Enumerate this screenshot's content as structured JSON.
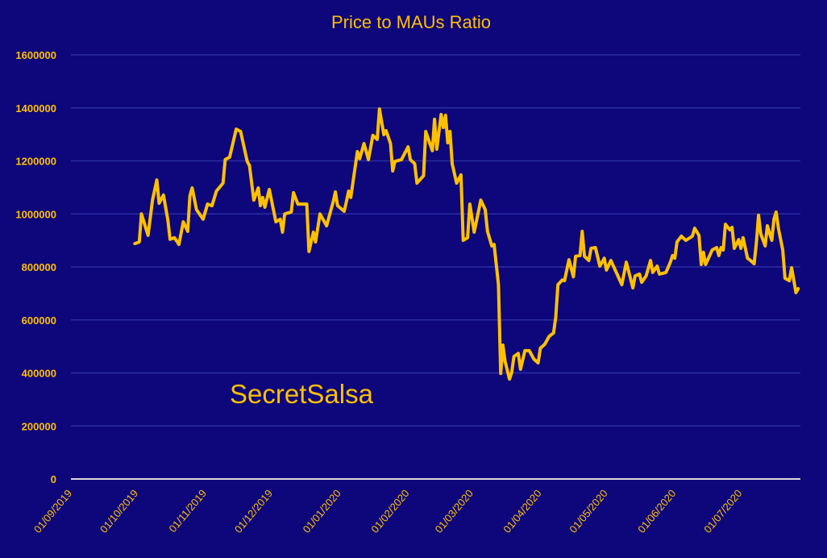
{
  "chart_data": {
    "type": "line",
    "title": "Price to MAUs Ratio",
    "xlabel": "",
    "ylabel": "",
    "annotation": "SecretSalsa",
    "x_unit": "days since 01/09/2019",
    "xlim": [
      0,
      331
    ],
    "ylim": [
      0,
      1600000
    ],
    "grid": true,
    "legend": "none",
    "y_ticks": [
      0,
      200000,
      400000,
      600000,
      800000,
      1000000,
      1200000,
      1400000,
      1600000
    ],
    "y_tick_labels": [
      "0",
      "200000",
      "400000",
      "600000",
      "800000",
      "1000000",
      "1200000",
      "1400000",
      "1600000"
    ],
    "x_ticks": [
      0,
      30,
      61,
      91,
      122,
      153,
      182,
      213,
      243,
      274,
      304
    ],
    "x_tick_labels": [
      "01/09/2019",
      "01/10/2019",
      "01/11/2019",
      "01/12/2019",
      "01/01/2020",
      "01/02/2020",
      "01/03/2020",
      "01/04/2020",
      "01/05/2020",
      "01/06/2020",
      "01/07/2020"
    ],
    "colors": {
      "background": "#0e067b",
      "line": "#ffc000",
      "text": "#ffc000",
      "grid": "#2b2ea3",
      "axis": "#d9d9d9"
    },
    "series": [
      {
        "name": "Price to MAUs Ratio",
        "x": [
          29,
          31,
          32,
          35,
          37,
          39,
          40,
          42,
          44,
          45,
          47,
          49,
          51,
          53,
          54,
          55,
          57,
          60,
          62,
          64,
          66,
          69,
          70,
          72,
          75,
          77,
          80,
          81,
          83,
          85,
          86,
          87,
          88,
          90,
          93,
          95,
          96,
          97,
          100,
          101,
          103,
          107,
          108,
          110,
          111,
          113,
          116,
          119,
          120,
          121,
          124,
          125,
          126,
          127,
          130,
          131,
          133,
          135,
          137,
          139,
          140,
          142,
          143,
          145,
          146,
          147,
          150,
          153,
          154,
          156,
          157,
          160,
          161,
          164,
          165,
          166,
          168,
          169,
          170,
          171,
          172,
          173,
          175,
          177,
          178,
          180,
          181,
          183,
          186,
          188,
          189,
          191,
          192,
          194,
          195,
          196,
          197,
          199,
          200,
          201,
          203,
          204,
          206,
          208,
          210,
          212,
          213,
          215,
          217,
          219,
          220,
          221,
          223,
          224,
          226,
          228,
          229,
          231,
          232,
          233,
          235,
          236,
          238,
          240,
          242,
          243,
          245,
          250,
          252,
          255,
          256,
          258,
          259,
          261,
          263,
          264,
          266,
          267,
          270,
          272,
          273,
          274,
          275,
          277,
          279,
          282,
          283,
          285,
          286,
          287,
          288,
          291,
          293,
          294,
          295,
          296,
          297,
          299,
          300,
          301,
          303,
          304,
          305,
          307,
          308,
          310,
          311,
          312,
          313,
          315,
          316,
          318,
          319,
          320,
          321,
          323,
          324,
          326,
          327,
          329,
          330
        ],
        "y": [
          888000,
          894000,
          1000000,
          919000,
          1052000,
          1128000,
          1040000,
          1071000,
          976000,
          904000,
          910000,
          885000,
          970000,
          934000,
          1068000,
          1098000,
          1016000,
          980000,
          1037000,
          1031000,
          1086000,
          1116000,
          1205000,
          1214000,
          1320000,
          1311000,
          1198000,
          1183000,
          1052000,
          1098000,
          1031000,
          1062000,
          1025000,
          1092000,
          970000,
          980000,
          931000,
          1000000,
          1007000,
          1080000,
          1037000,
          1037000,
          858000,
          931000,
          894000,
          1000000,
          955000,
          1046000,
          1083000,
          1031000,
          1010000,
          1046000,
          1086000,
          1062000,
          1235000,
          1208000,
          1265000,
          1205000,
          1296000,
          1281000,
          1396000,
          1299000,
          1314000,
          1265000,
          1162000,
          1198000,
          1205000,
          1253000,
          1205000,
          1189000,
          1116000,
          1144000,
          1311000,
          1238000,
          1357000,
          1244000,
          1375000,
          1326000,
          1372000,
          1268000,
          1311000,
          1189000,
          1116000,
          1147000,
          900000,
          910000,
          1037000,
          931000,
          1052000,
          1016000,
          934000,
          879000,
          885000,
          733000,
          398000,
          505000,
          444000,
          377000,
          401000,
          462000,
          474000,
          414000,
          484000,
          484000,
          453000,
          438000,
          493000,
          508000,
          538000,
          551000,
          611000,
          733000,
          751000,
          748000,
          827000,
          763000,
          840000,
          843000,
          934000,
          840000,
          824000,
          870000,
          873000,
          803000,
          833000,
          788000,
          824000,
          733000,
          818000,
          721000,
          766000,
          773000,
          742000,
          766000,
          824000,
          779000,
          803000,
          773000,
          779000,
          818000,
          843000,
          833000,
          894000,
          916000,
          900000,
          916000,
          946000,
          919000,
          809000,
          855000,
          809000,
          864000,
          873000,
          843000,
          873000,
          864000,
          961000,
          940000,
          949000,
          870000,
          903000,
          870000,
          910000,
          833000,
          827000,
          812000,
          888000,
          995000,
          925000,
          879000,
          955000,
          900000,
          980000,
          1007000,
          946000,
          864000,
          757000,
          748000,
          797000,
          703000,
          718000
        ]
      }
    ]
  }
}
